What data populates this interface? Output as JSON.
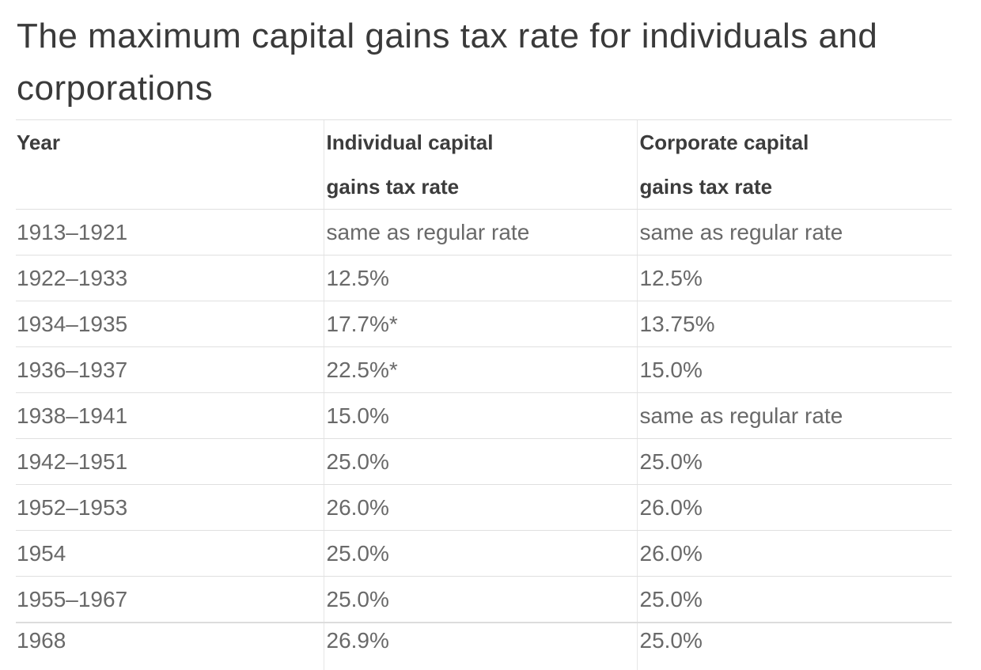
{
  "title": "The maximum capital gains tax rate for individuals and corporations",
  "colors": {
    "title_text": "#3a3a3a",
    "header_text": "#3c3c3c",
    "cell_text": "#696969",
    "row_border": "#e0e0e0",
    "column_border": "#e6e6e6",
    "background": "#ffffff"
  },
  "table": {
    "columns": [
      {
        "key": "year",
        "label": "Year"
      },
      {
        "key": "individual_rate",
        "label": "Individual capital\ngains tax rate"
      },
      {
        "key": "corporate_rate",
        "label": "Corporate capital\ngains tax rate"
      }
    ],
    "rows": [
      [
        "1913–1921",
        "same as regular rate",
        "same as regular rate"
      ],
      [
        "1922–1933",
        "12.5%",
        "12.5%"
      ],
      [
        "1934–1935",
        "17.7%*",
        "13.75%"
      ],
      [
        "1936–1937",
        "22.5%*",
        "15.0%"
      ],
      [
        "1938–1941",
        "15.0%",
        "same as regular rate"
      ],
      [
        "1942–1951",
        "25.0%",
        "25.0%"
      ],
      [
        "1952–1953",
        "26.0%",
        "26.0%"
      ],
      [
        "1954",
        "25.0%",
        "26.0%"
      ],
      [
        "1955–1967",
        "25.0%",
        "25.0%"
      ],
      [
        "1968",
        "26.9%",
        "25.0%"
      ]
    ],
    "last_row_clipped": true
  }
}
